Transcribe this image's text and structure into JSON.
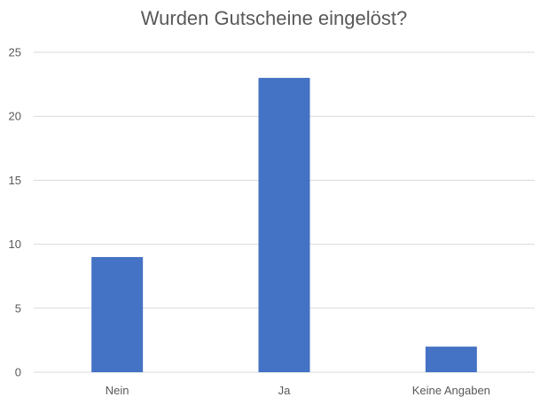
{
  "chart_data": {
    "type": "bar",
    "title": "Wurden Gutscheine eingelöst?",
    "categories": [
      "Nein",
      "Ja",
      "Keine Angaben"
    ],
    "values": [
      9,
      23,
      2
    ],
    "xlabel": "",
    "ylabel": "",
    "ylim": [
      0,
      25
    ],
    "yticks": [
      0,
      5,
      10,
      15,
      20,
      25
    ],
    "grid": true,
    "legend": "none",
    "bar_color": "#4472c4"
  }
}
